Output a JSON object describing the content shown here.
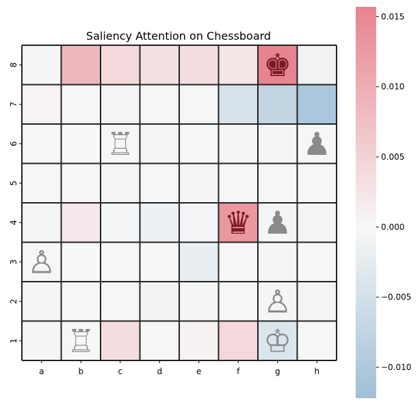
{
  "chart_data": {
    "type": "heatmap",
    "title": "Saliency Attention on Chessboard",
    "xlabel": "",
    "ylabel": "",
    "x_categories": [
      "a",
      "b",
      "c",
      "d",
      "e",
      "f",
      "g",
      "h"
    ],
    "y_categories": [
      "8",
      "7",
      "6",
      "5",
      "4",
      "3",
      "2",
      "1"
    ],
    "values": [
      [
        -0.0005,
        0.0085,
        0.004,
        0.003,
        0.0035,
        0.0022,
        0.0155,
        -0.001
      ],
      [
        0.0005,
        -0.0002,
        -0.0004,
        0.0003,
        -0.0003,
        -0.0045,
        -0.0075,
        -0.0105
      ],
      [
        0.0002,
        -0.0001,
        0.0001,
        -0.0005,
        -0.0003,
        -0.0004,
        -0.0006,
        0.0003
      ],
      [
        -0.0003,
        0.0003,
        -0.0006,
        0.0001,
        -0.0004,
        -0.0002,
        -0.0003,
        -0.0002
      ],
      [
        -0.0004,
        0.002,
        -0.0005,
        -0.0015,
        -0.0007,
        0.013,
        -0.0005,
        -0.0006
      ],
      [
        0.0002,
        -0.0001,
        0.0001,
        0.0,
        -0.002,
        0.0001,
        -0.0004,
        -0.0003
      ],
      [
        -0.0006,
        -0.0003,
        -0.0002,
        -0.0009,
        -0.0005,
        -0.0003,
        -0.0005,
        -0.0006
      ],
      [
        -0.0005,
        0.0002,
        0.0035,
        -0.0003,
        0.0007,
        0.004,
        -0.004,
        -0.0003
      ]
    ],
    "colorbar": {
      "min": -0.0122,
      "max": 0.0157,
      "ticks": [
        0.015,
        0.01,
        0.005,
        0.0,
        -0.005,
        -0.01
      ],
      "tick_labels": [
        "0.015",
        "0.010",
        "0.005",
        "0.000",
        "−0.005",
        "−0.010"
      ],
      "low_color": "#a0bfd6",
      "mid_color": "#f7f7f7",
      "high_color": "#e8838e"
    },
    "grid": true,
    "grid_color": "#222222",
    "pieces": [
      {
        "square": "g8",
        "name": "black-king-icon",
        "glyph": "♚",
        "color": "#7a1a22"
      },
      {
        "square": "h6",
        "name": "black-pawn-icon",
        "glyph": "♟",
        "color": "#8a8a8a"
      },
      {
        "square": "f4",
        "name": "black-queen-icon",
        "glyph": "♛",
        "color": "#7a1a22"
      },
      {
        "square": "g4",
        "name": "black-pawn-icon",
        "glyph": "♟",
        "color": "#8a8a8a"
      },
      {
        "square": "c6",
        "name": "white-rook-icon",
        "glyph": "♖",
        "color": "#8a8a8a"
      },
      {
        "square": "a3",
        "name": "white-pawn-icon",
        "glyph": "♙",
        "color": "#8a8a8a"
      },
      {
        "square": "g2",
        "name": "white-pawn-icon",
        "glyph": "♙",
        "color": "#8a8a8a"
      },
      {
        "square": "b1",
        "name": "white-rook-icon",
        "glyph": "♖",
        "color": "#8a8a8a"
      },
      {
        "square": "g1",
        "name": "white-king-icon",
        "glyph": "♔",
        "color": "#8a8a8a"
      }
    ]
  }
}
